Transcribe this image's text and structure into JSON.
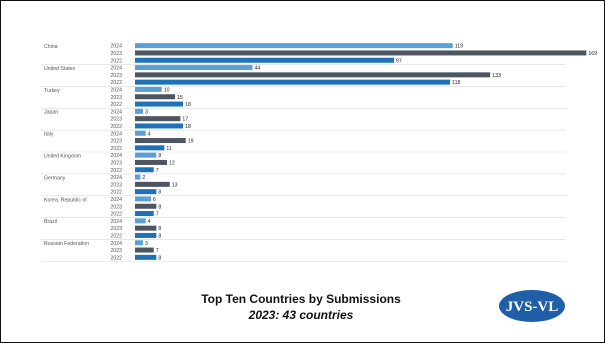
{
  "footer": {
    "title": "Top Ten Countries by Submissions",
    "subtitle": "2023: 43 countries"
  },
  "logo": {
    "text": "JVS-VL",
    "color": "#1f5fa8"
  },
  "colors": {
    "2024": "#5aa0d6",
    "2023": "#4d5560",
    "2022": "#1e72b8"
  },
  "chart_data": {
    "type": "bar",
    "orientation": "horizontal",
    "title": "",
    "xlabel": "",
    "ylabel": "",
    "xlim": [
      0,
      170
    ],
    "years": [
      "2024",
      "2023",
      "2022"
    ],
    "groups": [
      {
        "country": "China",
        "values": [
          119,
          169,
          97
        ]
      },
      {
        "country": "United States",
        "values": [
          44,
          133,
          118
        ]
      },
      {
        "country": "Turkey",
        "values": [
          10,
          15,
          18
        ]
      },
      {
        "country": "Japan",
        "values": [
          3,
          17,
          18
        ]
      },
      {
        "country": "Italy",
        "values": [
          4,
          19,
          11
        ]
      },
      {
        "country": "United Kingdom",
        "values": [
          8,
          12,
          7
        ]
      },
      {
        "country": "Germany",
        "values": [
          2,
          13,
          8
        ]
      },
      {
        "country": "Korea, Republic of",
        "values": [
          6,
          8,
          7
        ]
      },
      {
        "country": "Brazil",
        "values": [
          4,
          8,
          8
        ]
      },
      {
        "country": "Russian Federation",
        "values": [
          3,
          7,
          8
        ]
      }
    ]
  }
}
